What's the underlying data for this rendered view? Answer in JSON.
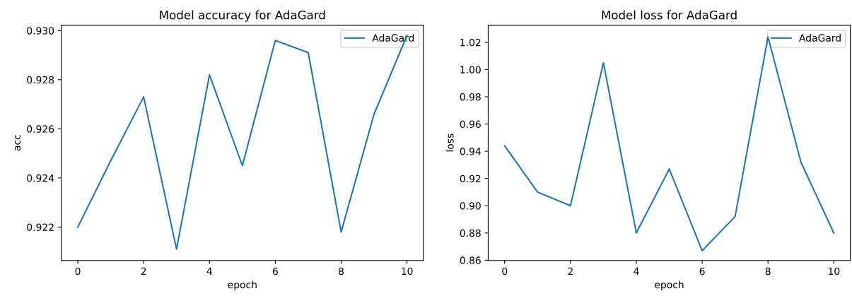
{
  "chart_data": [
    {
      "type": "line",
      "title": "Model accuracy for AdaGard",
      "xlabel": "epoch",
      "ylabel": "acc",
      "x": [
        0,
        1,
        2,
        3,
        4,
        5,
        6,
        7,
        8,
        9,
        10
      ],
      "series": [
        {
          "name": "AdaGard",
          "color": "#1f77b4",
          "values": [
            0.922,
            0.9247,
            0.9273,
            0.9211,
            0.9282,
            0.9245,
            0.9296,
            0.9291,
            0.9218,
            0.9266,
            0.9298
          ]
        }
      ],
      "xlim": [
        -0.5,
        10.5
      ],
      "xticks": [
        0,
        2,
        4,
        6,
        8,
        10
      ],
      "ylim": [
        0.92064,
        0.93022
      ],
      "yticks": [
        {
          "value": 0.922,
          "label": "0.922"
        },
        {
          "value": 0.924,
          "label": "0.924"
        },
        {
          "value": 0.926,
          "label": "0.926"
        },
        {
          "value": 0.928,
          "label": "0.928"
        },
        {
          "value": 0.93,
          "label": "0.930"
        }
      ],
      "legend": "top right"
    },
    {
      "type": "line",
      "title": "Model loss for AdaGard",
      "xlabel": "epoch",
      "ylabel": "loss",
      "x": [
        0,
        1,
        2,
        3,
        4,
        5,
        6,
        7,
        8,
        9,
        10
      ],
      "series": [
        {
          "name": "AdaGard",
          "color": "#1f77b4",
          "values": [
            0.944,
            0.91,
            0.9,
            1.005,
            0.88,
            0.927,
            0.867,
            0.892,
            1.024,
            0.932,
            0.88
          ]
        }
      ],
      "xlim": [
        -0.5,
        10.5
      ],
      "xticks": [
        0,
        2,
        4,
        6,
        8,
        10
      ],
      "ylim": [
        0.8598,
        1.0326
      ],
      "yticks": [
        {
          "value": 0.86,
          "label": "0.86"
        },
        {
          "value": 0.88,
          "label": "0.88"
        },
        {
          "value": 0.9,
          "label": "0.90"
        },
        {
          "value": 0.92,
          "label": "0.92"
        },
        {
          "value": 0.94,
          "label": "0.94"
        },
        {
          "value": 0.96,
          "label": "0.96"
        },
        {
          "value": 0.98,
          "label": "0.98"
        },
        {
          "value": 1.0,
          "label": "1.00"
        },
        {
          "value": 1.02,
          "label": "1.02"
        }
      ],
      "legend": "top right"
    }
  ]
}
